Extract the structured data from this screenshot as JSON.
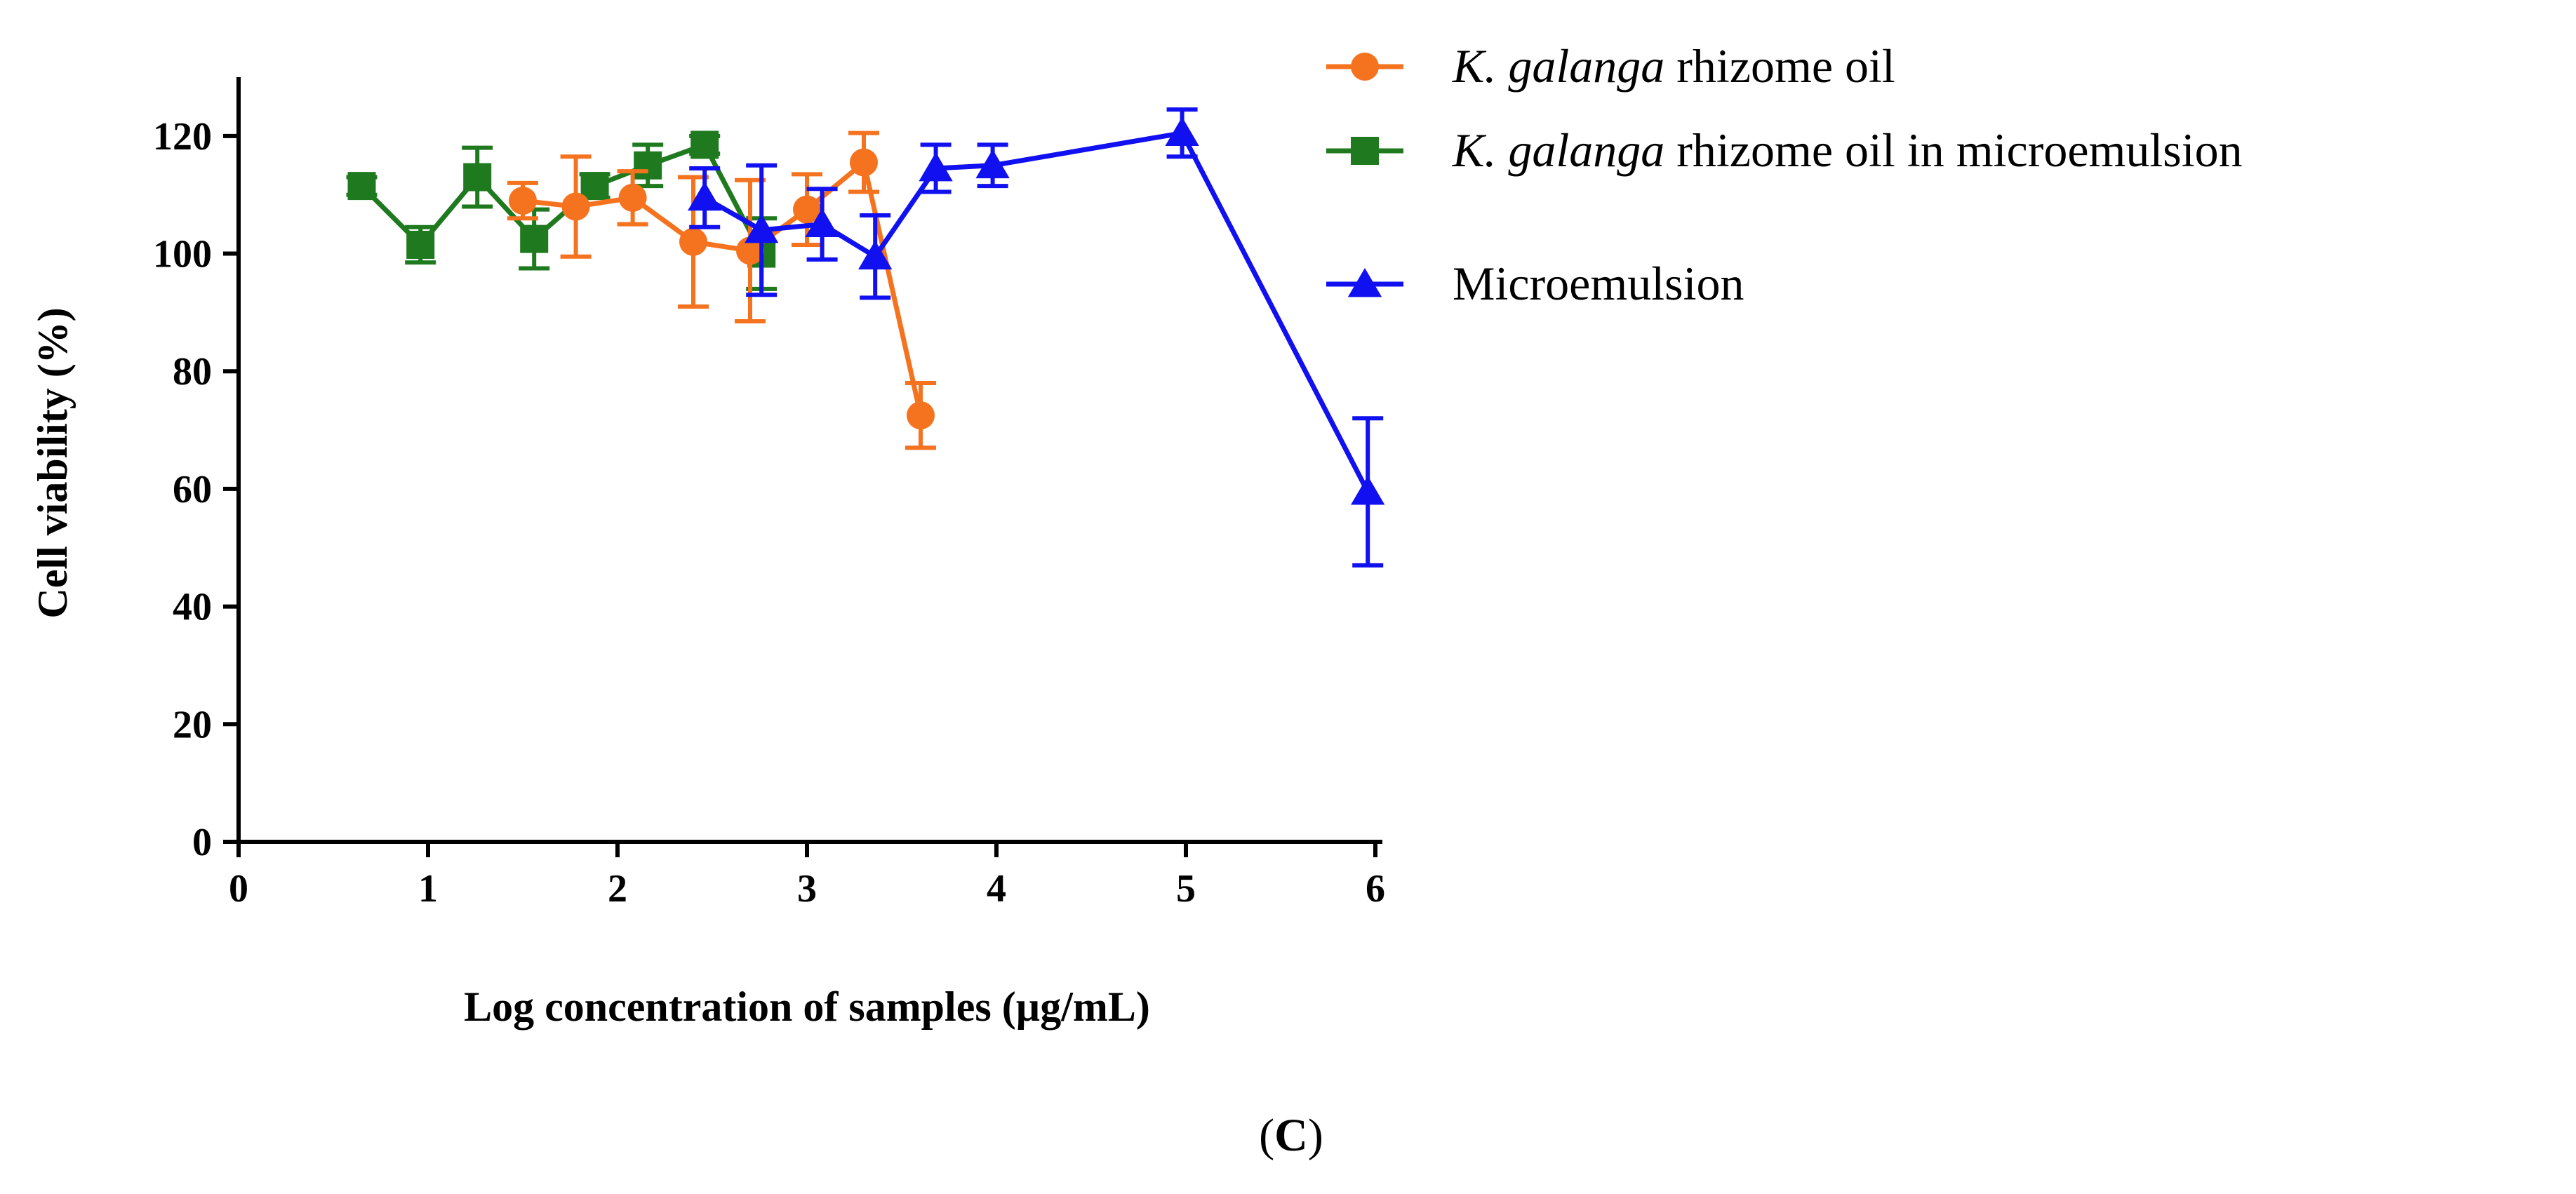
{
  "chart_data": {
    "type": "line",
    "title": "",
    "panel_label": "C",
    "xlabel": "Log concentration of samples (µg/mL)",
    "ylabel": "Cell viability (%)",
    "xlim": [
      0,
      6
    ],
    "ylim": [
      0,
      130
    ],
    "xticks": [
      0,
      1,
      2,
      3,
      4,
      5,
      6
    ],
    "yticks": [
      0,
      20,
      40,
      60,
      80,
      100,
      120
    ],
    "grid": false,
    "legend_position": "top-right",
    "series": [
      {
        "name_parts": [
          {
            "text": "K. galanga",
            "italic": true
          },
          {
            "text": " rhizome oil",
            "italic": false
          }
        ],
        "color": "#F5731F",
        "marker": "circle",
        "x": [
          1.5,
          1.78,
          2.08,
          2.4,
          2.7,
          3.0,
          3.3,
          3.6
        ],
        "y": [
          109,
          108,
          109.5,
          102,
          100.5,
          107.5,
          115.5,
          72.5
        ],
        "err": [
          3,
          8.5,
          4.5,
          11,
          12,
          6,
          5,
          5.5
        ]
      },
      {
        "name_parts": [
          {
            "text": "K. galanga",
            "italic": true
          },
          {
            "text": " rhizome oil in microemulsion",
            "italic": false
          }
        ],
        "color": "#1F7A1F",
        "marker": "square",
        "x": [
          0.65,
          0.96,
          1.26,
          1.56,
          1.88,
          2.16,
          2.46,
          2.76
        ],
        "y": [
          111.5,
          101.5,
          113,
          102.5,
          111.5,
          115,
          118.5,
          100
        ],
        "err": [
          1.5,
          3,
          5,
          5,
          2,
          3.5,
          1.5,
          6
        ]
      },
      {
        "name_parts": [
          {
            "text": "Microemulsion",
            "italic": false
          }
        ],
        "color": "#1010F0",
        "marker": "triangle",
        "x": [
          2.46,
          2.76,
          3.08,
          3.36,
          3.68,
          3.98,
          4.98,
          5.96
        ],
        "y": [
          109.5,
          104,
          105,
          99.5,
          114.5,
          115,
          120.5,
          59.5
        ],
        "err": [
          5,
          11,
          6,
          7,
          4,
          3.5,
          4,
          12.5
        ]
      }
    ]
  }
}
